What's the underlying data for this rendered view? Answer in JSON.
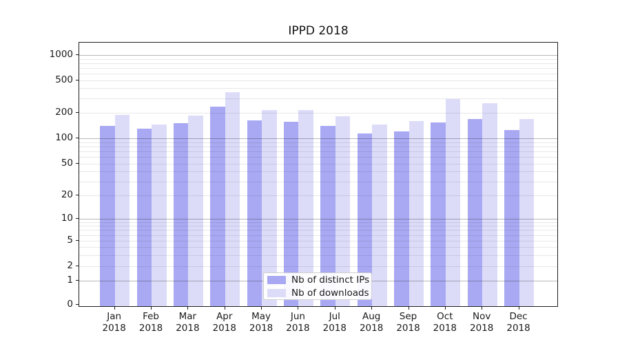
{
  "chart_data": {
    "type": "bar",
    "title": "IPPD 2018",
    "categories": [
      "Jan 2018",
      "Feb 2018",
      "Mar 2018",
      "Apr 2018",
      "May 2018",
      "Jun 2018",
      "Jul 2018",
      "Aug 2018",
      "Sep 2018",
      "Oct 2018",
      "Nov 2018",
      "Dec 2018"
    ],
    "x_months": [
      "Jan",
      "Feb",
      "Mar",
      "Apr",
      "May",
      "Jun",
      "Jul",
      "Aug",
      "Sep",
      "Oct",
      "Nov",
      "Dec"
    ],
    "x_year": "2018",
    "series": [
      {
        "name": "Nb of distinct IPs",
        "color": "#a9a9f3",
        "values": [
          140,
          129,
          150,
          239,
          162,
          158,
          141,
          114,
          121,
          153,
          168,
          126
        ]
      },
      {
        "name": "Nb of downloads",
        "color": "#dcdcf9",
        "values": [
          188,
          146,
          185,
          362,
          217,
          217,
          181,
          146,
          161,
          294,
          264,
          170
        ]
      }
    ],
    "xlabel": "",
    "ylabel": "",
    "yscale": "symlog",
    "ylim": [
      0,
      1400
    ],
    "ytick_labels": [
      "1000",
      "500",
      "200",
      "100",
      "50",
      "20",
      "10",
      "5",
      "2",
      "1",
      "0"
    ],
    "ytick_values": [
      1000,
      500,
      200,
      100,
      50,
      20,
      10,
      5,
      2,
      1,
      0
    ],
    "grid": true,
    "legend_position": "lower center"
  }
}
